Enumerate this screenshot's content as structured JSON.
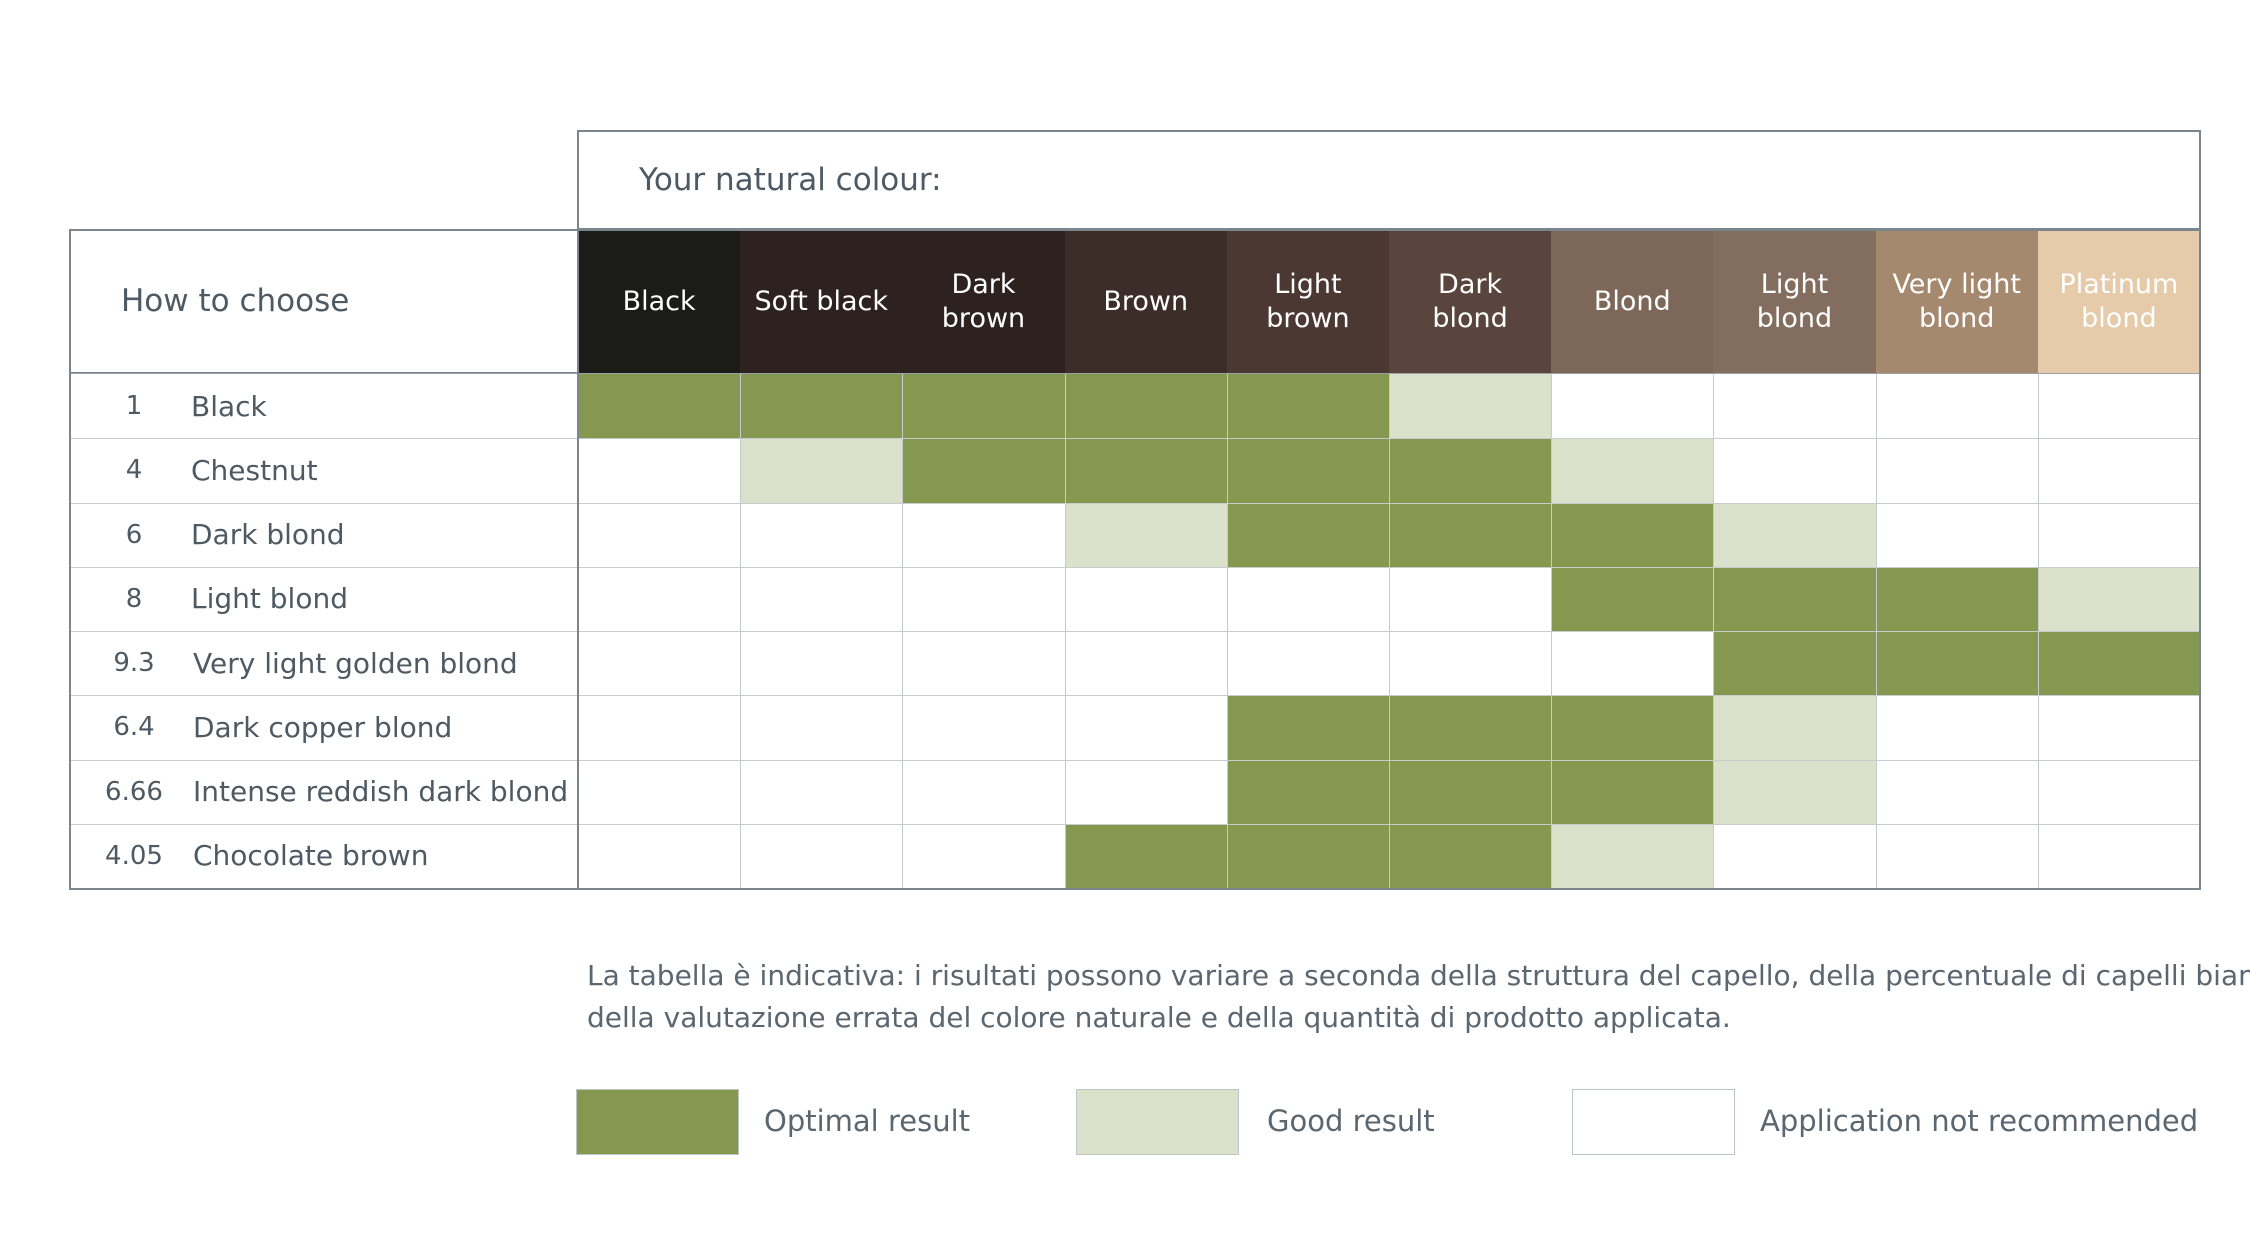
{
  "colors": {
    "optimal": "#85984f",
    "good": "#dce1cc",
    "not_recommended": "#ffffff"
  },
  "chart_data": {
    "type": "table",
    "title": "Your natural colour:",
    "row_header": "How to choose",
    "columns": [
      {
        "label": "Black",
        "bg": "#1b1c18",
        "fg": "#ffffff"
      },
      {
        "label": "Soft black",
        "bg": "#2d2220",
        "fg": "#ffffff"
      },
      {
        "label": "Dark brown",
        "bg": "#2e2220",
        "fg": "#ffffff"
      },
      {
        "label": "Brown",
        "bg": "#3d2d29",
        "fg": "#ffffff"
      },
      {
        "label": "Light brown",
        "bg": "#4c3833",
        "fg": "#ffffff"
      },
      {
        "label": "Dark blond",
        "bg": "#5a453e",
        "fg": "#ffffff"
      },
      {
        "label": "Blond",
        "bg": "#7d6759",
        "fg": "#ffffff"
      },
      {
        "label": "Light blond",
        "bg": "#826d5e",
        "fg": "#ffffff"
      },
      {
        "label": "Very light blond",
        "bg": "#a5896f",
        "fg": "#ffffff"
      },
      {
        "label": "Platinum blond",
        "bg": "#e5cba9",
        "fg": "#ffffff"
      }
    ],
    "rows": [
      {
        "number": "1",
        "name": "Black",
        "results": [
          "optimal",
          "optimal",
          "optimal",
          "optimal",
          "optimal",
          "good",
          "none",
          "none",
          "none",
          "none"
        ]
      },
      {
        "number": "4",
        "name": "Chestnut",
        "results": [
          "none",
          "good",
          "optimal",
          "optimal",
          "optimal",
          "optimal",
          "good",
          "none",
          "none",
          "none"
        ]
      },
      {
        "number": "6",
        "name": "Dark blond",
        "results": [
          "none",
          "none",
          "none",
          "good",
          "optimal",
          "optimal",
          "optimal",
          "good",
          "none",
          "none"
        ]
      },
      {
        "number": "8",
        "name": "Light blond",
        "results": [
          "none",
          "none",
          "none",
          "none",
          "none",
          "none",
          "optimal",
          "optimal",
          "optimal",
          "good"
        ]
      },
      {
        "number": "9.3",
        "name": "Very light golden blond",
        "results": [
          "none",
          "none",
          "none",
          "none",
          "none",
          "none",
          "none",
          "optimal",
          "optimal",
          "optimal"
        ]
      },
      {
        "number": "6.4",
        "name": "Dark copper blond",
        "results": [
          "none",
          "none",
          "none",
          "none",
          "optimal",
          "optimal",
          "optimal",
          "good",
          "none",
          "none"
        ]
      },
      {
        "number": "6.66",
        "name": "Intense reddish dark blond",
        "results": [
          "none",
          "none",
          "none",
          "none",
          "optimal",
          "optimal",
          "optimal",
          "good",
          "none",
          "none"
        ]
      },
      {
        "number": "4.05",
        "name": "Chocolate brown",
        "results": [
          "none",
          "none",
          "none",
          "optimal",
          "optimal",
          "optimal",
          "good",
          "none",
          "none",
          "none"
        ]
      }
    ]
  },
  "note": {
    "line1": "La tabella è indicativa: i risultati possono variare a seconda della struttura del capello, della percentuale di capelli bianchi,",
    "line2": "della valutazione errata del colore naturale e della quantità di prodotto applicata."
  },
  "legend": {
    "optimal": "Optimal result",
    "good": "Good result",
    "not_recommended": "Application not recommended"
  }
}
